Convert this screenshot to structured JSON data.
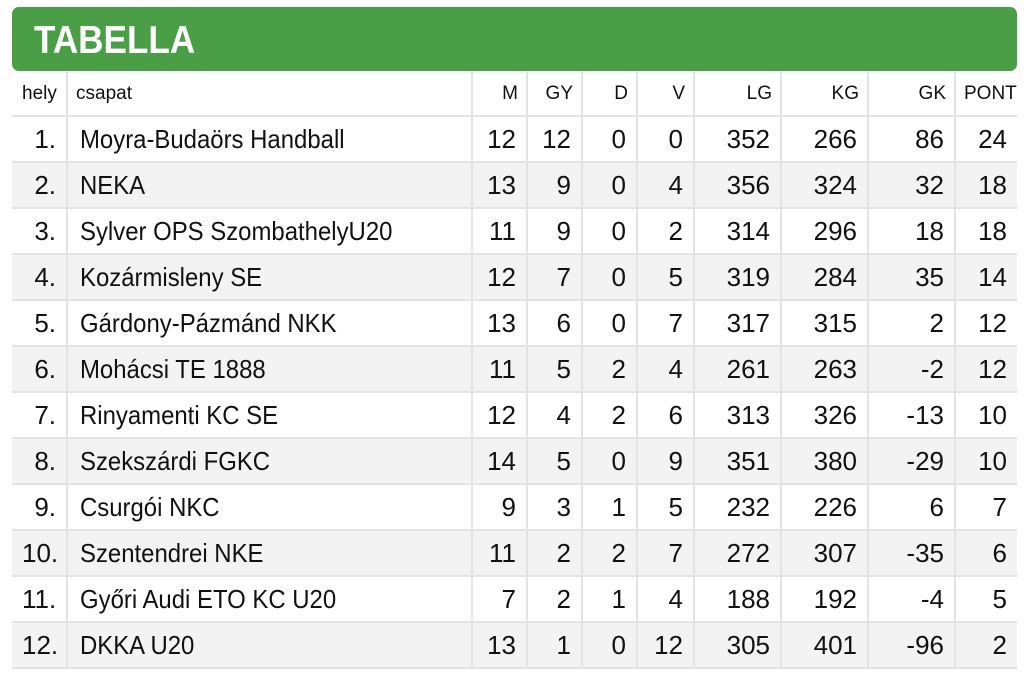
{
  "title": "TABELLA",
  "colors": {
    "banner": "#4a9e45",
    "stripe": "#f3f3f3",
    "grid": "#e3e3e3"
  },
  "columns": [
    "hely",
    "csapat",
    "M",
    "GY",
    "D",
    "V",
    "LG",
    "KG",
    "GK",
    "PONT"
  ],
  "rows": [
    [
      "1.",
      "Moyra-Budaörs Handball",
      "12",
      "12",
      "0",
      "0",
      "352",
      "266",
      "86",
      "24"
    ],
    [
      "2.",
      "NEKA",
      "13",
      "9",
      "0",
      "4",
      "356",
      "324",
      "32",
      "18"
    ],
    [
      "3.",
      "Sylver OPS SzombathelyU20",
      "11",
      "9",
      "0",
      "2",
      "314",
      "296",
      "18",
      "18"
    ],
    [
      "4.",
      "Kozármisleny SE",
      "12",
      "7",
      "0",
      "5",
      "319",
      "284",
      "35",
      "14"
    ],
    [
      "5.",
      "Gárdony-Pázmánd NKK",
      "13",
      "6",
      "0",
      "7",
      "317",
      "315",
      "2",
      "12"
    ],
    [
      "6.",
      "Mohácsi TE 1888",
      "11",
      "5",
      "2",
      "4",
      "261",
      "263",
      "-2",
      "12"
    ],
    [
      "7.",
      "Rinyamenti KC SE",
      "12",
      "4",
      "2",
      "6",
      "313",
      "326",
      "-13",
      "10"
    ],
    [
      "8.",
      "Szekszárdi FGKC",
      "14",
      "5",
      "0",
      "9",
      "351",
      "380",
      "-29",
      "10"
    ],
    [
      "9.",
      "Csurgói NKC",
      "9",
      "3",
      "1",
      "5",
      "232",
      "226",
      "6",
      "7"
    ],
    [
      "10.",
      "Szentendrei NKE",
      "11",
      "2",
      "2",
      "7",
      "272",
      "307",
      "-35",
      "6"
    ],
    [
      "11.",
      "Győri Audi ETO KC U20",
      "7",
      "2",
      "1",
      "4",
      "188",
      "192",
      "-4",
      "5"
    ],
    [
      "12.",
      "DKKA U20",
      "13",
      "1",
      "0",
      "12",
      "305",
      "401",
      "-96",
      "2"
    ]
  ]
}
